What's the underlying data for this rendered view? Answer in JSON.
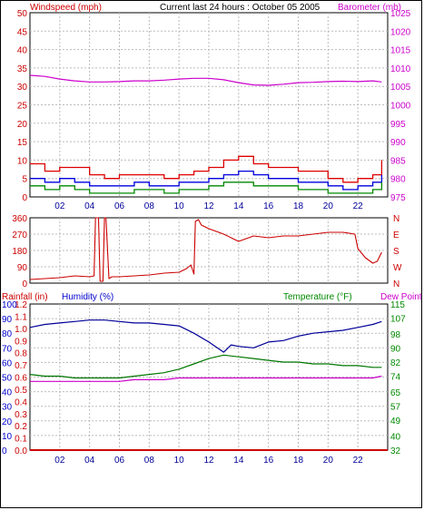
{
  "header": {
    "left_title": "Windspeed (mph)",
    "center_title": "Current last 24 hours : October 05 2005",
    "right_title": "Barometer (mb)"
  },
  "labels": {
    "rainfall": "Rainfall (in)",
    "humidity": "Humidity (%)",
    "temperature": "Temperature (°F)",
    "dewpoint": "Dew Point"
  },
  "colors": {
    "wind_axis": "#cc0000",
    "baro_axis": "#cc00cc",
    "gust": "#dd0000",
    "speed": "#0000dd",
    "wind_low": "#008800",
    "direction": "#cc0000",
    "humidity": "#000099",
    "temperature": "#007700",
    "dewpoint": "#cc00cc",
    "rainfall": "#cc0000",
    "humidity_axis": "#0000cc",
    "temp_axis": "#008800",
    "grid": "#bbbbbb"
  },
  "chart_data": [
    {
      "type": "line",
      "name": "windspeed-barometer",
      "x_tick_labels": [
        "02",
        "04",
        "06",
        "08",
        "10",
        "12",
        "14",
        "16",
        "18",
        "20",
        "22"
      ],
      "x_ticks_hours": [
        2,
        4,
        6,
        8,
        10,
        12,
        14,
        16,
        18,
        20,
        22
      ],
      "xlim": [
        0,
        24
      ],
      "left_axis": {
        "label": "Windspeed (mph)",
        "ticks": [
          0,
          5,
          10,
          15,
          20,
          25,
          30,
          35,
          40,
          45,
          50
        ],
        "ylim": [
          0,
          50
        ]
      },
      "right_axis": {
        "label": "Barometer (mb)",
        "ticks": [
          975,
          980,
          985,
          990,
          995,
          1000,
          1005,
          1010,
          1015,
          1020,
          1025
        ],
        "ylim": [
          975,
          1025
        ]
      },
      "series": [
        {
          "key": "gust",
          "axis": "left",
          "x": [
            0,
            1,
            2,
            3,
            4,
            5,
            6,
            7,
            8,
            9,
            10,
            11,
            12,
            13,
            14,
            15,
            16,
            17,
            18,
            19,
            20,
            21,
            22,
            23,
            23.6
          ],
          "values": [
            9,
            7,
            8,
            8,
            6,
            5,
            6,
            6,
            6,
            5,
            6,
            7,
            8,
            10,
            11,
            9,
            8,
            8,
            7,
            7,
            5,
            4,
            5,
            6,
            10
          ]
        },
        {
          "key": "speed",
          "axis": "left",
          "x": [
            0,
            1,
            2,
            3,
            4,
            5,
            6,
            7,
            8,
            9,
            10,
            11,
            12,
            13,
            14,
            15,
            16,
            17,
            18,
            19,
            20,
            21,
            22,
            23,
            23.6
          ],
          "values": [
            5,
            4,
            5,
            4,
            3,
            3,
            3,
            4,
            3,
            3,
            4,
            4,
            5,
            6,
            7,
            6,
            5,
            5,
            4,
            4,
            3,
            2,
            3,
            4,
            6
          ]
        },
        {
          "key": "wind_low",
          "axis": "left",
          "x": [
            0,
            1,
            2,
            3,
            4,
            5,
            6,
            7,
            8,
            9,
            10,
            11,
            12,
            13,
            14,
            15,
            16,
            17,
            18,
            19,
            20,
            21,
            22,
            23,
            23.6
          ],
          "values": [
            3,
            2,
            3,
            2,
            1,
            1,
            1,
            2,
            2,
            1,
            2,
            2,
            3,
            4,
            4,
            3,
            3,
            3,
            2,
            2,
            1,
            1,
            1,
            2,
            4
          ]
        },
        {
          "key": "barometer",
          "axis": "right",
          "x": [
            0,
            1,
            2,
            3,
            4,
            5,
            6,
            7,
            8,
            9,
            10,
            11,
            12,
            13,
            14,
            15,
            16,
            17,
            18,
            19,
            20,
            21,
            22,
            23,
            23.6
          ],
          "values": [
            1008,
            1007.7,
            1007,
            1006.5,
            1006.2,
            1006.2,
            1006.3,
            1006.5,
            1006.5,
            1006.7,
            1007,
            1007.2,
            1007.2,
            1006.8,
            1006,
            1005.4,
            1005.3,
            1005.6,
            1006,
            1006.1,
            1006.3,
            1006.4,
            1006.3,
            1006.5,
            1006.2
          ]
        }
      ]
    },
    {
      "type": "line",
      "name": "wind-direction",
      "xlim": [
        0,
        24
      ],
      "left_axis": {
        "ticks": [
          0,
          90,
          180,
          270,
          360
        ],
        "ylim": [
          0,
          360
        ]
      },
      "right_axis": {
        "tick_labels": [
          "N",
          "E",
          "S",
          "W",
          "N"
        ]
      },
      "series": [
        {
          "key": "direction",
          "x": [
            0,
            1,
            2,
            3,
            4,
            4.3,
            4.4,
            4.6,
            4.7,
            4.9,
            5.0,
            5.1,
            5.3,
            5.5,
            6,
            7,
            8,
            9,
            10,
            10.5,
            10.8,
            11.0,
            11.1,
            11.3,
            11.5,
            12,
            13,
            14,
            15,
            16,
            17,
            18,
            19,
            20,
            21,
            21.8,
            22,
            22.5,
            23,
            23.3,
            23.6
          ],
          "values": [
            20,
            25,
            30,
            40,
            35,
            40,
            360,
            360,
            10,
            10,
            360,
            360,
            25,
            35,
            35,
            40,
            45,
            55,
            60,
            80,
            100,
            50,
            340,
            350,
            320,
            300,
            270,
            230,
            260,
            250,
            260,
            260,
            270,
            280,
            280,
            270,
            190,
            140,
            110,
            120,
            170
          ]
        }
      ]
    },
    {
      "type": "line",
      "name": "rain-humidity-temperature",
      "xlim": [
        0,
        24
      ],
      "left_axis": {
        "label": "Humidity (%)",
        "ticks": [
          0,
          10,
          20,
          30,
          40,
          50,
          60,
          70,
          80,
          90,
          100
        ],
        "ylim": [
          0,
          100
        ]
      },
      "rain_axis": {
        "label": "Rainfall (in)",
        "tick_labels": [
          "0.0",
          "0.1",
          "0.2",
          "0.3",
          "0.4",
          "0.5",
          "0.6",
          "0.7",
          "0.8",
          "0.9",
          "1.0",
          "1.1",
          "1.2"
        ]
      },
      "right_axis": {
        "label": "Temperature (°F)",
        "ticks": [
          32,
          40,
          49,
          57,
          65,
          74,
          82,
          90,
          98,
          107,
          115
        ],
        "ylim": [
          32,
          115
        ]
      },
      "series": [
        {
          "key": "humidity",
          "axis": "left",
          "x": [
            0,
            1,
            2,
            3,
            4,
            5,
            6,
            7,
            8,
            9,
            10,
            11,
            12,
            13,
            13.5,
            14,
            15,
            16,
            17,
            18,
            19,
            20,
            21,
            22,
            23,
            23.6
          ],
          "values": [
            84,
            86,
            87,
            88,
            89,
            89,
            88,
            87,
            87,
            86,
            85,
            80,
            74,
            67,
            72,
            71,
            70,
            74,
            75,
            78,
            80,
            81,
            82,
            84,
            86,
            88
          ]
        },
        {
          "key": "temperature",
          "axis": "right",
          "x": [
            0,
            1,
            2,
            3,
            4,
            5,
            6,
            7,
            8,
            9,
            10,
            11,
            12,
            13,
            14,
            15,
            16,
            17,
            18,
            19,
            20,
            21,
            22,
            23,
            23.6
          ],
          "values": [
            75,
            74,
            74,
            73,
            73,
            73,
            73,
            74,
            75,
            76,
            78,
            81,
            84,
            86,
            85,
            84,
            83,
            82,
            82,
            81,
            81,
            80,
            80,
            79,
            79
          ]
        },
        {
          "key": "dewpoint",
          "axis": "right",
          "x": [
            0,
            1,
            2,
            3,
            4,
            5,
            6,
            7,
            8,
            9,
            10,
            11,
            12,
            13,
            14,
            15,
            16,
            17,
            18,
            19,
            20,
            21,
            22,
            23,
            23.6
          ],
          "values": [
            71,
            71,
            71,
            71,
            71,
            71,
            71,
            72,
            72,
            72,
            73,
            73,
            73,
            73,
            73,
            73,
            73,
            73,
            73,
            73,
            73,
            73,
            73,
            73,
            74
          ]
        },
        {
          "key": "rainfall",
          "axis": "rain",
          "x": [
            0,
            24
          ],
          "values": [
            0,
            0
          ]
        }
      ]
    }
  ]
}
